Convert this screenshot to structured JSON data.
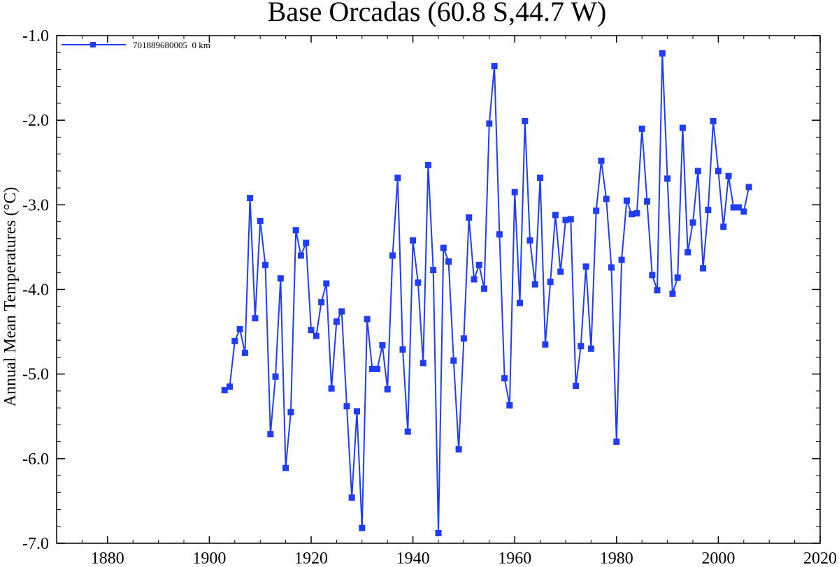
{
  "chart_data": {
    "type": "line",
    "title": "Base Orcadas (60.8 S,44.7 W)",
    "xlabel": "",
    "ylabel": "Annual Mean Temperatures (°C)",
    "xlim": [
      1870,
      2020
    ],
    "ylim": [
      -7.0,
      -1.0
    ],
    "xticks": [
      1880,
      1900,
      1920,
      1940,
      1960,
      1980,
      2000,
      2020
    ],
    "xtick_labels": [
      "1880",
      "1900",
      "1920",
      "1940",
      "1960",
      "1980",
      "2000",
      "2020"
    ],
    "yticks": [
      -1.0,
      -2.0,
      -3.0,
      -4.0,
      -5.0,
      -6.0,
      -7.0
    ],
    "ytick_labels": [
      "-1.0",
      "-2.0",
      "-3.0",
      "-4.0",
      "-5.0",
      "-6.0",
      "-7.0"
    ],
    "grid": false,
    "legend_position": "top-left",
    "series": [
      {
        "name": "701889680005  0 km",
        "color": "#1f3df5",
        "marker": "square",
        "x": [
          1903,
          1904,
          1905,
          1906,
          1907,
          1908,
          1909,
          1910,
          1911,
          1912,
          1913,
          1914,
          1915,
          1916,
          1917,
          1918,
          1919,
          1920,
          1921,
          1922,
          1923,
          1924,
          1925,
          1926,
          1927,
          1928,
          1929,
          1930,
          1931,
          1932,
          1933,
          1934,
          1935,
          1936,
          1937,
          1938,
          1939,
          1940,
          1941,
          1942,
          1943,
          1944,
          1945,
          1946,
          1947,
          1948,
          1949,
          1950,
          1951,
          1952,
          1953,
          1954,
          1955,
          1956,
          1957,
          1958,
          1959,
          1960,
          1961,
          1962,
          1963,
          1964,
          1965,
          1966,
          1967,
          1968,
          1969,
          1970,
          1971,
          1972,
          1973,
          1974,
          1975,
          1976,
          1977,
          1978,
          1979,
          1980,
          1981,
          1982,
          1983,
          1984,
          1985,
          1986,
          1987,
          1988,
          1989,
          1990,
          1991,
          1992,
          1993,
          1994,
          1995,
          1996,
          1997,
          1998,
          1999,
          2000,
          2001,
          2002,
          2003,
          2004,
          2005,
          2006
        ],
        "y": [
          -5.19,
          -5.15,
          -4.61,
          -4.47,
          -4.75,
          -2.92,
          -4.34,
          -3.19,
          -3.71,
          -5.71,
          -5.03,
          -3.87,
          -6.11,
          -5.45,
          -3.3,
          -3.6,
          -3.45,
          -4.48,
          -4.55,
          -4.15,
          -3.93,
          -5.17,
          -4.38,
          -4.26,
          -5.38,
          -6.46,
          -5.44,
          -6.82,
          -4.35,
          -4.94,
          -4.94,
          -4.66,
          -5.18,
          -3.6,
          -2.68,
          -4.71,
          -5.68,
          -3.42,
          -3.92,
          -4.87,
          -2.53,
          -3.77,
          -6.88,
          -3.51,
          -3.67,
          -4.84,
          -5.89,
          -4.58,
          -3.15,
          -3.88,
          -3.71,
          -3.99,
          -2.04,
          -1.36,
          -3.35,
          -5.05,
          -5.37,
          -2.85,
          -4.16,
          -2.01,
          -3.42,
          -3.94,
          -2.68,
          -4.65,
          -3.91,
          -3.12,
          -3.79,
          -3.18,
          -3.17,
          -5.14,
          -4.67,
          -3.73,
          -4.7,
          -3.07,
          -2.48,
          -2.93,
          -3.74,
          -5.8,
          -3.65,
          -2.95,
          -3.11,
          -3.1,
          -2.1,
          -2.96,
          -3.83,
          -4.01,
          -1.21,
          -2.69,
          -4.05,
          -3.86,
          -2.09,
          -3.56,
          -3.21,
          -2.6,
          -3.75,
          -3.06,
          -2.01,
          -2.6,
          -3.26,
          -2.66,
          -3.03,
          -3.03,
          -3.08,
          -2.79
        ]
      }
    ]
  }
}
